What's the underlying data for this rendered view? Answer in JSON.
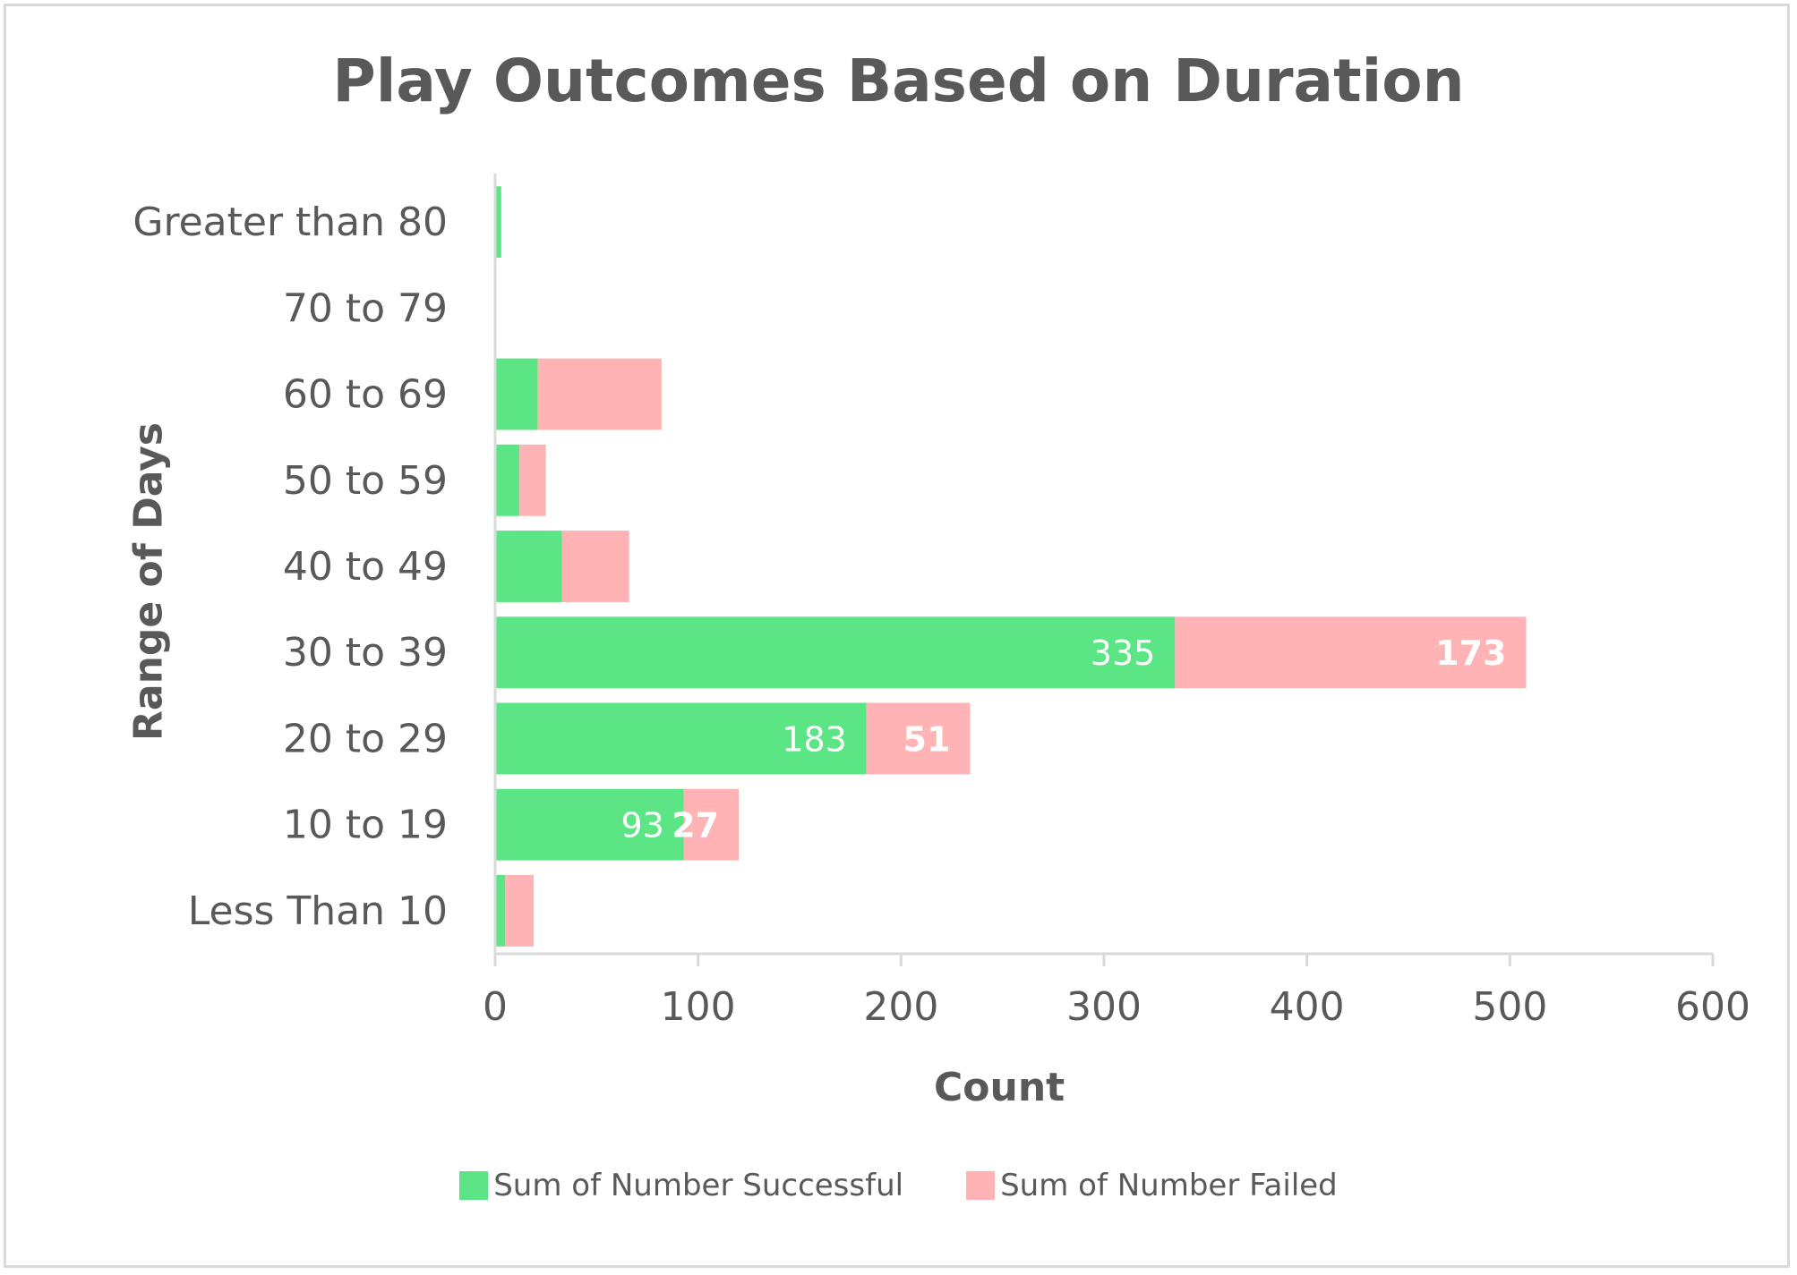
{
  "chart_data": {
    "type": "bar",
    "orientation": "horizontal",
    "stacked": true,
    "title": "Play Outcomes Based on Duration",
    "xlabel": "Count",
    "ylabel": "Range of Days",
    "xlim": [
      0,
      600
    ],
    "xticks": [
      0,
      100,
      200,
      300,
      400,
      500,
      600
    ],
    "grid": false,
    "legend_position": "bottom",
    "categories": [
      "Less Than 10",
      "10 to 19",
      "20 to 29",
      "30 to 39",
      "40 to 49",
      "50 to 59",
      "60 to 69",
      "70 to 79",
      "Greater than 80"
    ],
    "series": [
      {
        "name": "Sum of Number Successful",
        "color": "#5ce584",
        "values": [
          5,
          93,
          183,
          335,
          33,
          12,
          21,
          0,
          3
        ],
        "data_labels": [
          null,
          "93",
          "183",
          "335",
          null,
          null,
          null,
          null,
          null
        ]
      },
      {
        "name": "Sum of Number Failed",
        "color": "#ffb3b5",
        "values": [
          14,
          27,
          51,
          173,
          33,
          13,
          61,
          0,
          0
        ],
        "data_labels": [
          null,
          "27",
          "51",
          "173",
          null,
          null,
          null,
          null,
          null
        ]
      }
    ]
  }
}
